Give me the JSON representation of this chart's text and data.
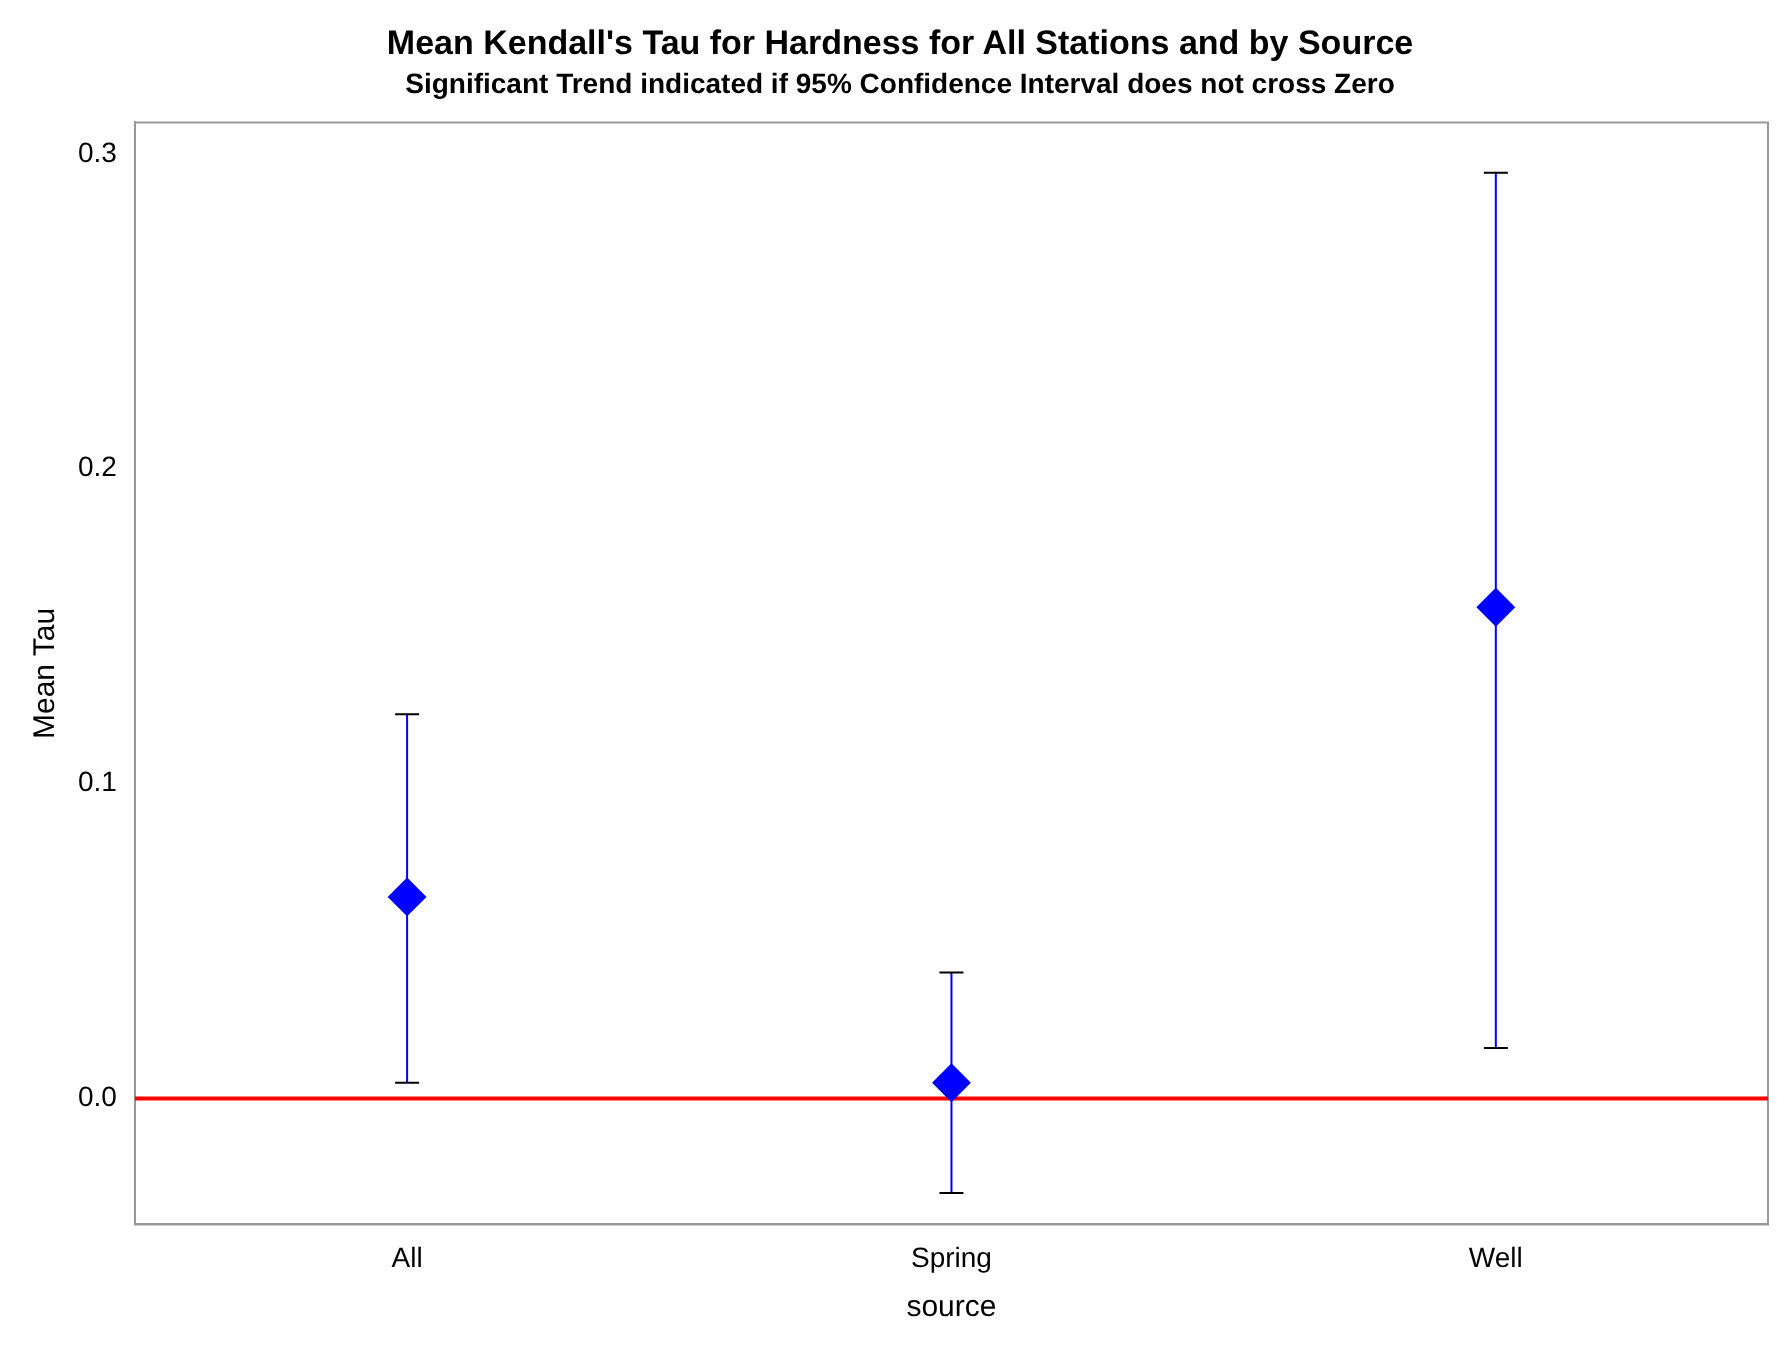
{
  "chart_data": {
    "type": "scatter",
    "title": "Mean Kendall's Tau for Hardness for All Stations and by Source",
    "subtitle": "Significant Trend indicated if 95% Confidence Interval does not cross Zero",
    "xlabel": "source",
    "ylabel": "Mean Tau",
    "categories": [
      "All",
      "Spring",
      "Well"
    ],
    "series": [
      {
        "color": "#0000ff",
        "values": [
          0.064,
          0.005,
          0.156
        ],
        "errors": [
          [
            0.005,
            0.122
          ],
          [
            -0.03,
            0.04
          ],
          [
            0.016,
            0.294
          ]
        ]
      }
    ],
    "marker": "diamond",
    "ylim": [
      -0.04,
      0.31
    ],
    "yticks": [
      {
        "value": 0,
        "label": "0.0"
      },
      0.1,
      0.2,
      0.3
    ],
    "grid": false,
    "legend": false,
    "ref_lines": [
      {
        "axis": "y",
        "value": 0,
        "color": "#ff0000"
      }
    ]
  }
}
